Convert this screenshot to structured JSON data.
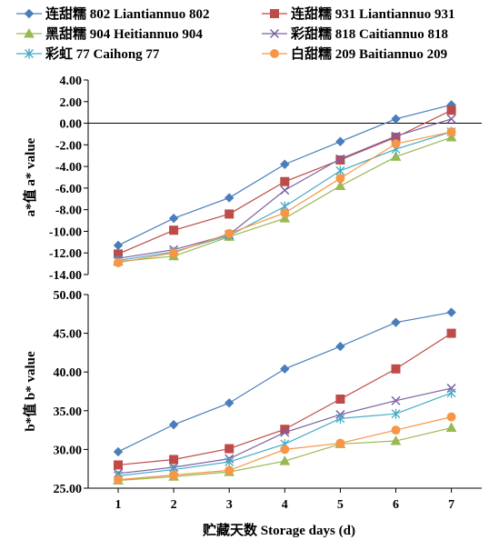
{
  "chart_data": {
    "type": "line",
    "x": [
      1,
      2,
      3,
      4,
      5,
      6,
      7
    ],
    "xlabel": "贮藏天数 Storage days (d)",
    "x_tick_labels": [
      "1",
      "2",
      "3",
      "4",
      "5",
      "6",
      "7"
    ],
    "legend": {
      "placement": "top",
      "entries": [
        {
          "label": "连甜糯 802 Liantiannuo 802",
          "color": "#4a7ebb",
          "marker": "diamond"
        },
        {
          "label": "连甜糯 931 Liantiannuo 931",
          "color": "#be4b48",
          "marker": "square"
        },
        {
          "label": "黑甜糯 904 Heitiannuo 904",
          "color": "#98b954",
          "marker": "triangle"
        },
        {
          "label": "彩甜糯 818 Caitiannuo 818",
          "color": "#7d60a0",
          "marker": "x"
        },
        {
          "label": "彩虹 77 Caihong 77",
          "color": "#46aac5",
          "marker": "star"
        },
        {
          "label": "白甜糯 209 Baitiannuo 209",
          "color": "#f79646",
          "marker": "circle"
        }
      ]
    },
    "panels": [
      {
        "ylabel": "a*值 a* value",
        "ylim": [
          -14,
          4
        ],
        "y_tick_labels": [
          "4.00",
          "2.00",
          "0.00",
          "-2.00",
          "-4.00",
          "-6.00",
          "-8.00",
          "-10.00",
          "-12.00",
          "-14.00"
        ],
        "y_ticks": [
          4,
          2,
          0,
          -2,
          -4,
          -6,
          -8,
          -10,
          -12,
          -14
        ],
        "zero_line": true,
        "series": [
          {
            "name": "连甜糯 802 Liantiannuo 802",
            "values": [
              -11.3,
              -8.8,
              -6.9,
              -3.8,
              -1.7,
              0.4,
              1.7
            ]
          },
          {
            "name": "连甜糯 931 Liantiannuo 931",
            "values": [
              -12.1,
              -9.9,
              -8.4,
              -5.4,
              -3.4,
              -1.3,
              1.2
            ]
          },
          {
            "name": "黑甜糯 904 Heitiannuo 904",
            "values": [
              -12.8,
              -12.3,
              -10.5,
              -8.8,
              -5.8,
              -3.1,
              -1.3
            ]
          },
          {
            "name": "彩甜糯 818 Caitiannuo 818",
            "values": [
              -12.5,
              -11.7,
              -10.3,
              -6.2,
              -3.3,
              -1.2,
              0.4
            ]
          },
          {
            "name": "彩虹 77 Caihong 77",
            "values": [
              -12.7,
              -11.9,
              -10.4,
              -7.7,
              -4.4,
              -2.4,
              -0.8
            ]
          },
          {
            "name": "白甜糯 209 Baitiannuo 209",
            "values": [
              -12.9,
              -12.0,
              -10.2,
              -8.3,
              -5.1,
              -1.9,
              -0.8
            ]
          }
        ]
      },
      {
        "ylabel": "b*值 b* value",
        "ylim": [
          25,
          50
        ],
        "y_tick_labels": [
          "50.00",
          "45.00",
          "40.00",
          "35.00",
          "30.00",
          "25.00"
        ],
        "y_ticks": [
          50,
          45,
          40,
          35,
          30,
          25
        ],
        "zero_line": false,
        "series": [
          {
            "name": "连甜糯 802 Liantiannuo 802",
            "values": [
              29.7,
              33.2,
              36.0,
              40.4,
              43.3,
              46.4,
              47.7
            ]
          },
          {
            "name": "连甜糯 931 Liantiannuo 931",
            "values": [
              28.0,
              28.7,
              30.1,
              32.6,
              36.5,
              40.4,
              45.0
            ]
          },
          {
            "name": "黑甜糯 904 Heitiannuo 904",
            "values": [
              26.0,
              26.5,
              27.1,
              28.5,
              30.7,
              31.1,
              32.8
            ]
          },
          {
            "name": "彩甜糯 818 Caitiannuo 818",
            "values": [
              26.9,
              27.7,
              28.8,
              32.2,
              34.5,
              36.3,
              37.9
            ]
          },
          {
            "name": "彩虹 77 Caihong 77",
            "values": [
              26.6,
              27.4,
              28.4,
              30.7,
              34.0,
              34.6,
              37.3
            ]
          },
          {
            "name": "白甜糯 209 Baitiannuo 209",
            "values": [
              26.1,
              26.7,
              27.3,
              30.0,
              30.8,
              32.5,
              34.2
            ]
          }
        ]
      }
    ]
  }
}
